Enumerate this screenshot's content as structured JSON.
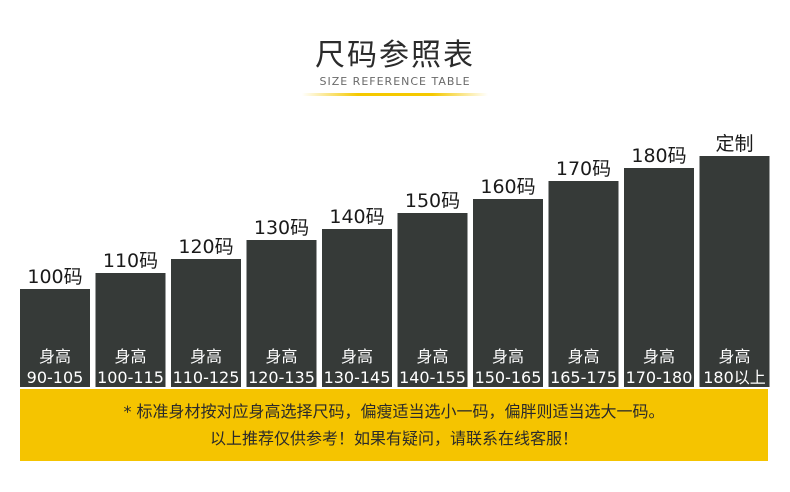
{
  "header": {
    "title": "尺码参照表",
    "subtitle": "SIZE REFERENCE TABLE"
  },
  "colors": {
    "bar": "#363a38",
    "accent": "#f5c400",
    "label": "#1a1a1a",
    "bar_text": "#ffffff"
  },
  "chart_data": {
    "type": "bar",
    "categories": [
      "100码",
      "110码",
      "120码",
      "130码",
      "140码",
      "150码",
      "160码",
      "170码",
      "180码",
      "定制"
    ],
    "bar_inner_label": "身高",
    "height_ranges": [
      "90-105",
      "100-115",
      "110-125",
      "120-135",
      "130-145",
      "140-155",
      "150-165",
      "165-175",
      "170-180",
      "180以上"
    ],
    "values": [
      98,
      114,
      128,
      147,
      158,
      174,
      188,
      206,
      219,
      231
    ],
    "ylim": [
      0,
      240
    ],
    "grid": false,
    "legend": "none"
  },
  "notes": {
    "line1": "* 标准身材按对应身高选择尺码，偏瘦适当选小一码，偏胖则适当选大一码。",
    "line2": "以上推荐仅供参考！如果有疑问，请联系在线客服！"
  }
}
